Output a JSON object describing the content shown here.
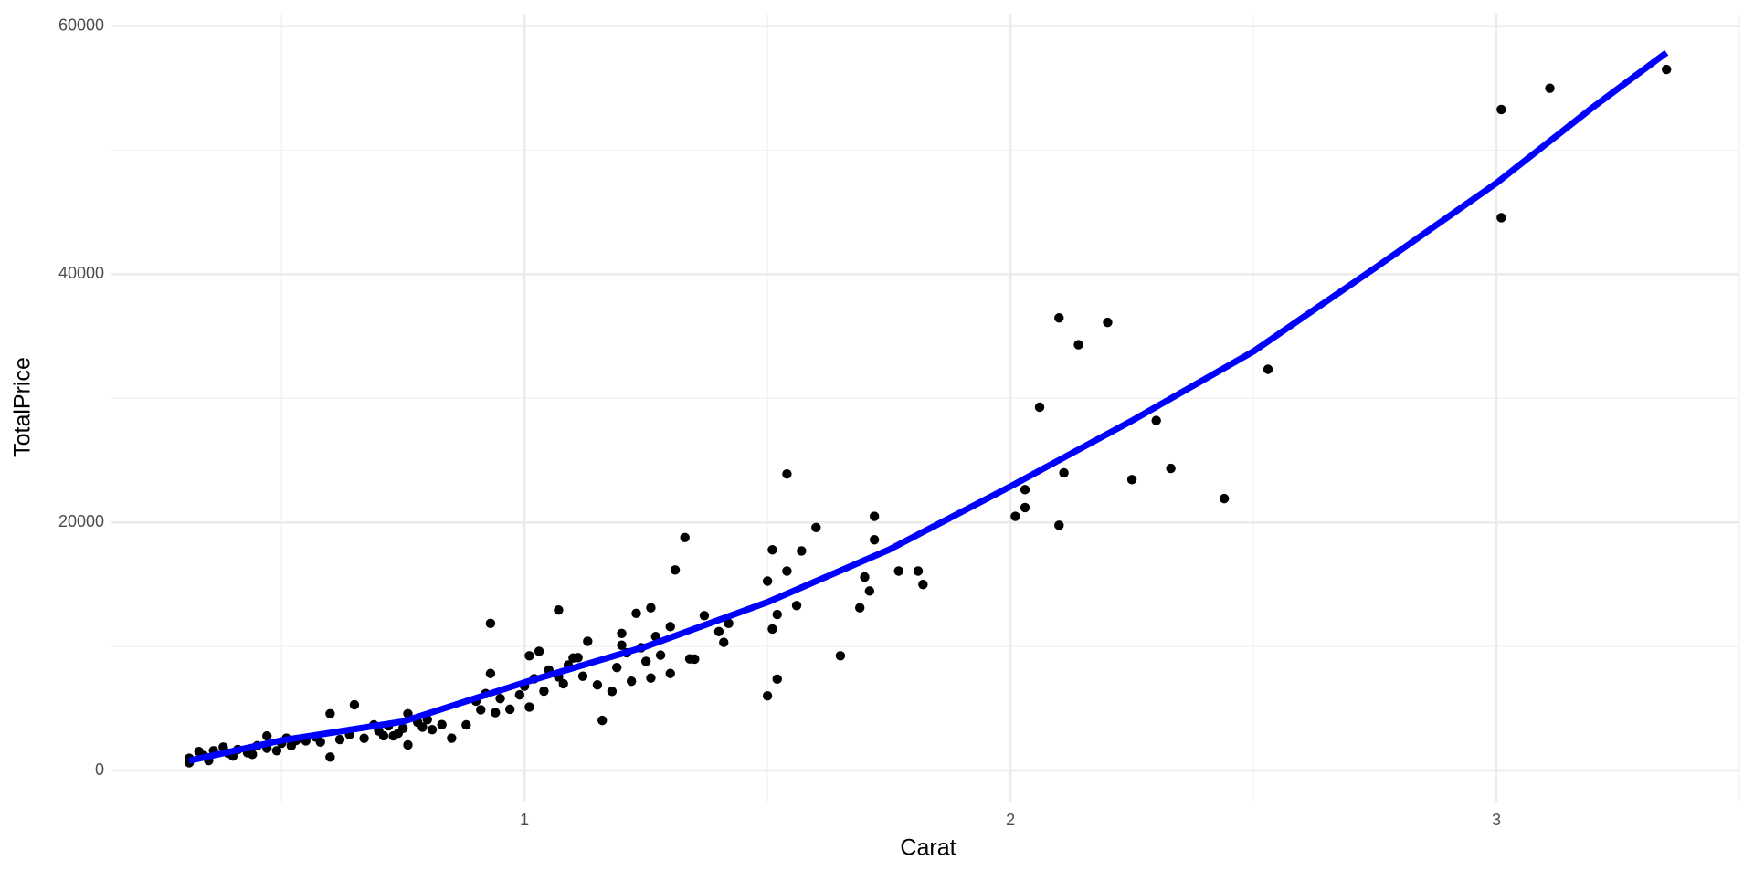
{
  "chart_data": {
    "type": "scatter",
    "x_label": "Carat",
    "y_label": "TotalPrice",
    "xlim": [
      0.15,
      3.5
    ],
    "ylim": [
      -2500,
      61000
    ],
    "xticks": [
      1,
      2,
      3
    ],
    "yticks": [
      0,
      20000,
      40000,
      60000
    ],
    "minor_xticks": [
      0.5,
      1.5,
      2.5,
      3.5
    ],
    "minor_yticks": [
      10000,
      30000,
      50000
    ],
    "grid": true,
    "points": {
      "color": "#000000",
      "x": [
        0.31,
        0.31,
        0.33,
        0.35,
        0.38,
        0.4,
        0.43,
        0.47,
        0.47,
        0.51,
        0.53,
        0.6,
        0.6,
        0.65,
        0.69,
        0.73,
        0.76,
        0.76,
        0.79,
        0.85,
        0.88,
        0.93,
        0.93,
        0.94,
        0.97,
        1.01,
        1.01,
        1.03,
        1.07,
        1.07,
        1.1,
        1.13,
        1.16,
        1.18,
        1.2,
        1.23,
        1.26,
        1.26,
        1.3,
        1.31,
        1.33,
        1.35,
        1.37,
        1.41,
        1.42,
        1.5,
        1.5,
        1.51,
        1.52,
        1.52,
        1.51,
        1.54,
        1.54,
        1.56,
        1.57,
        1.6,
        1.65,
        1.69,
        1.71,
        1.72,
        1.72,
        1.77,
        1.81,
        1.82,
        2.01,
        2.03,
        2.03,
        2.06,
        2.1,
        2.1,
        2.11,
        2.14,
        2.2,
        2.25,
        2.3,
        2.33,
        2.44,
        2.53,
        3.01,
        3.01,
        3.11,
        3.35,
        0.34,
        0.36,
        0.39,
        0.41,
        0.44,
        0.45,
        0.49,
        0.5,
        0.52,
        0.55,
        0.57,
        0.58,
        0.62,
        0.64,
        0.67,
        0.7,
        0.71,
        0.72,
        0.74,
        0.75,
        0.78,
        0.8,
        0.81,
        0.83,
        0.9,
        0.91,
        0.92,
        0.95,
        0.99,
        1.0,
        1.02,
        1.04,
        1.05,
        1.08,
        1.09,
        1.11,
        1.12,
        1.15,
        1.19,
        1.2,
        1.21,
        1.22,
        1.24,
        1.25,
        1.27,
        1.28,
        1.3,
        1.34,
        1.4,
        1.7
      ],
      "y": [
        630,
        990,
        1530,
        810,
        1890,
        1170,
        1440,
        2790,
        1800,
        2610,
        2430,
        1080,
        4580,
        5300,
        3680,
        2790,
        4580,
        2070,
        3500,
        2610,
        3680,
        11860,
        7820,
        4670,
        4940,
        5120,
        9250,
        9610,
        12940,
        7550,
        9070,
        10420,
        4040,
        6380,
        11050,
        12670,
        13120,
        7460,
        7820,
        16170,
        18780,
        8980,
        12490,
        10330,
        11860,
        6020,
        15270,
        17790,
        7370,
        12580,
        11410,
        23900,
        16080,
        13300,
        17700,
        19590,
        9250,
        13120,
        14470,
        20490,
        18600,
        16080,
        16080,
        15000,
        20490,
        22640,
        21200,
        29290,
        36480,
        19770,
        23990,
        34320,
        36120,
        23450,
        28210,
        24350,
        21920,
        32340,
        53280,
        44560,
        54990,
        56510,
        1200,
        1600,
        1400,
        1700,
        1300,
        2000,
        1600,
        2200,
        2000,
        2400,
        2700,
        2300,
        2500,
        2900,
        2600,
        3200,
        2800,
        3600,
        3000,
        3400,
        3900,
        4100,
        3300,
        3700,
        5600,
        4900,
        6200,
        5800,
        6100,
        6800,
        7400,
        6400,
        8100,
        7000,
        8500,
        9100,
        7600,
        6900,
        8300,
        10100,
        9500,
        7200,
        9900,
        8800,
        10800,
        9300,
        11600,
        9000,
        11200,
        15600
      ]
    },
    "fit": {
      "color": "#0000ff",
      "x": [
        0.31,
        0.5,
        0.75,
        1.0,
        1.25,
        1.5,
        1.75,
        2.0,
        2.25,
        2.5,
        2.75,
        3.0,
        3.2,
        3.35
      ],
      "y": [
        800,
        2430,
        3950,
        7100,
        10000,
        13570,
        17800,
        22900,
        28200,
        33780,
        40500,
        47350,
        53500,
        57860
      ]
    }
  }
}
